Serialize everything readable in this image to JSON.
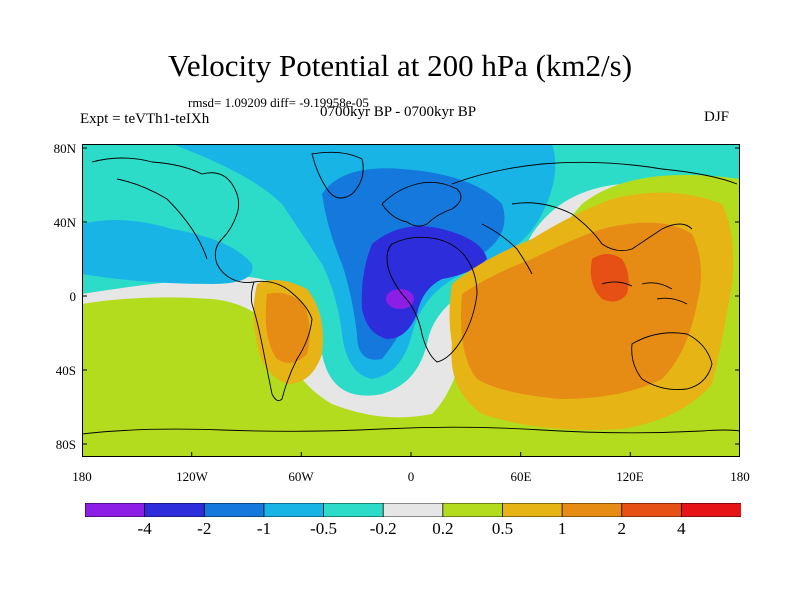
{
  "title": "Velocity Potential at 200 hPa (km2/s)",
  "stats": "rmsd= 1.09209 diff= -9.19958e-05",
  "experiment": "Expt = teVTh1-teIXh",
  "period": "0700kyr BP - 0700kyr BP",
  "season": "DJF",
  "lat_labels": [
    "80N",
    "40N",
    "0",
    "40S",
    "80S"
  ],
  "lon_labels": [
    "180",
    "120W",
    "60W",
    "0",
    "60E",
    "120E",
    "180"
  ],
  "colorbar": {
    "labels": [
      "-4",
      "-2",
      "-1",
      "-0.5",
      "-0.2",
      "0.2",
      "0.5",
      "1",
      "2",
      "4"
    ],
    "colors": [
      "#8c1ee6",
      "#2d2ddc",
      "#1478dc",
      "#19b4e6",
      "#2ddcc8",
      "#e6e6e6",
      "#b4dc1e",
      "#e6b414",
      "#e68c14",
      "#e65014",
      "#e61414"
    ]
  },
  "field_colors": {
    "ocean_neutral": "#e6e6e6",
    "weak_positive": "#b4dc1e",
    "moderate_positive": "#e6b414",
    "strong_positive": "#e68c14",
    "very_strong_positive": "#e65014",
    "weak_negative": "#2ddcc8",
    "moderate_negative": "#19b4e6",
    "strong_negative": "#1478dc",
    "very_strong_negative": "#2d2ddc",
    "extreme_negative": "#8c1ee6"
  }
}
